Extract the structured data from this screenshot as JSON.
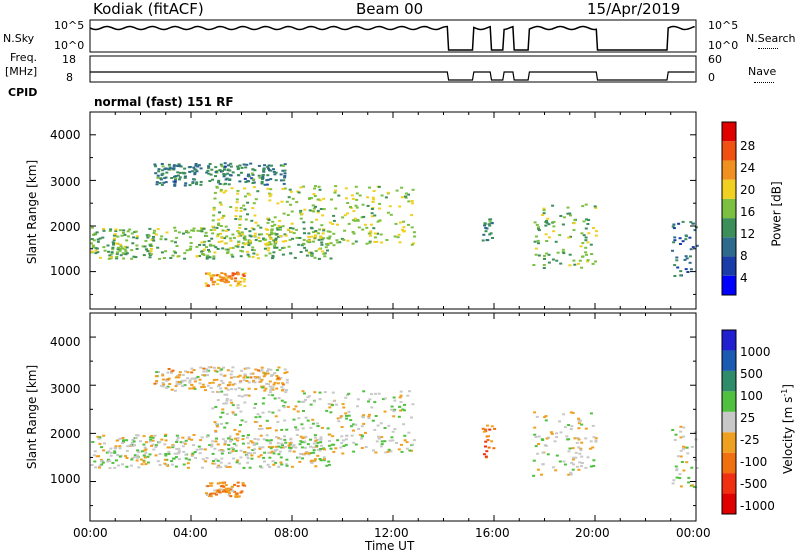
{
  "header": {
    "site": "Kodiak (fitACF)",
    "beam": "Beam 00",
    "date": "15/Apr/2019"
  },
  "top_panels": {
    "nsky_label": "N.Sky",
    "nsky_ticks": [
      "10^5",
      "10^0"
    ],
    "nsearch_label": "N.Search",
    "nsearch_ticks": [
      "10^5",
      "10^0"
    ],
    "freq_label_1": "Freq.",
    "freq_label_2": "[MHz]",
    "freq_ticks": [
      "18",
      "8"
    ],
    "nave_label": "Nave",
    "nave_ticks": [
      "60",
      "0"
    ],
    "cpid_label": "CPID",
    "cpid_text": "normal (fast) 151 RF"
  },
  "panels": {
    "ylabel": "Slant Range [km]",
    "yticks": [
      "4000",
      "3000",
      "2000",
      "1000"
    ],
    "xlabel": "Time UT",
    "xticks": [
      "00:00",
      "04:00",
      "08:00",
      "12:00",
      "16:00",
      "20:00",
      "00:00"
    ]
  },
  "power_bar": {
    "label": "Power [dB]",
    "ticks": [
      "28",
      "24",
      "20",
      "16",
      "12",
      "8",
      "4"
    ],
    "colors": [
      "#0000ff",
      "#1a3ca8",
      "#2e6a8c",
      "#3d8f5a",
      "#7bc040",
      "#f0d020",
      "#f09020",
      "#f05010",
      "#e00000"
    ]
  },
  "velocity_bar": {
    "label": "Velocity [m s",
    "label_sup": "-1",
    "label_end": "]",
    "ticks": [
      "1000",
      "500",
      "100",
      "25",
      "-25",
      "-100",
      "-500",
      "-1000"
    ],
    "colors": [
      "#2020d0",
      "#1a5ab0",
      "#2e8c6a",
      "#50c040",
      "#c8c8c8",
      "#f0a020",
      "#f07010",
      "#f03010",
      "#e00000"
    ]
  },
  "chart_data": {
    "type": "heatmap",
    "title": "Kodiak (fitACF) Beam 00 15/Apr/2019",
    "xlabel": "Time UT",
    "ylabel": "Slant Range [km]",
    "x_range_hours": [
      0,
      24
    ],
    "y_range_km": [
      180,
      4500
    ],
    "xticks": [
      "00:00",
      "04:00",
      "08:00",
      "12:00",
      "16:00",
      "20:00",
      "00:00"
    ],
    "yticks": [
      1000,
      2000,
      3000,
      4000
    ],
    "panels": [
      {
        "name": "Power [dB]",
        "colorbar_range": [
          0,
          30
        ],
        "echo_regions": [
          {
            "t": [
              0.0,
              9.5
            ],
            "range_km": [
              1300,
              2000
            ],
            "power_dB": 14
          },
          {
            "t": [
              4.8,
              12.8
            ],
            "range_km": [
              1600,
              2900
            ],
            "power_dB": 16
          },
          {
            "t": [
              2.5,
              7.8
            ],
            "range_km": [
              2900,
              3400
            ],
            "power_dB": 10
          },
          {
            "t": [
              4.5,
              6.1
            ],
            "range_km": [
              700,
              1000
            ],
            "power_dB": 22
          },
          {
            "t": [
              15.5,
              16.0
            ],
            "range_km": [
              1700,
              2200
            ],
            "power_dB": 10
          },
          {
            "t": [
              17.5,
              20.0
            ],
            "range_km": [
              1100,
              2500
            ],
            "power_dB": 14
          },
          {
            "t": [
              23.0,
              24.0
            ],
            "range_km": [
              900,
              2200
            ],
            "power_dB": 8
          }
        ]
      },
      {
        "name": "Velocity [m s-1]",
        "colorbar_range": [
          -1000,
          1000
        ],
        "echo_regions": [
          {
            "t": [
              0.0,
              9.5
            ],
            "range_km": [
              1300,
              2000
            ],
            "velocity": 0
          },
          {
            "t": [
              4.8,
              12.8
            ],
            "range_km": [
              1600,
              2900
            ],
            "velocity": 0
          },
          {
            "t": [
              2.5,
              7.8
            ],
            "range_km": [
              2900,
              3400
            ],
            "velocity": -100
          },
          {
            "t": [
              4.5,
              6.1
            ],
            "range_km": [
              700,
              1000
            ],
            "velocity": -300
          },
          {
            "t": [
              15.5,
              16.0
            ],
            "range_km": [
              1500,
              2200
            ],
            "velocity": -500
          },
          {
            "t": [
              17.5,
              20.0
            ],
            "range_km": [
              1100,
              2500
            ],
            "velocity": 0
          },
          {
            "t": [
              23.0,
              24.0
            ],
            "range_km": [
              900,
              2200
            ],
            "velocity": 0
          }
        ]
      }
    ],
    "data_gaps_hours": [
      [
        14.2,
        15.2
      ],
      [
        15.9,
        16.4
      ],
      [
        16.8,
        17.4
      ],
      [
        20.1,
        22.9
      ]
    ]
  }
}
